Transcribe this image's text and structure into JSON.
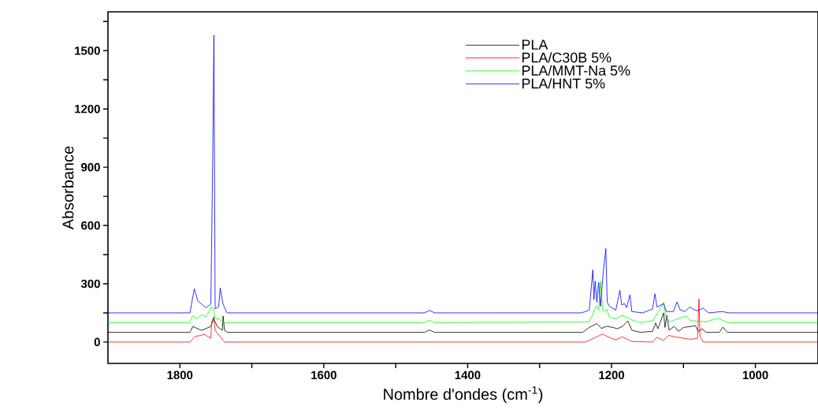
{
  "chart_data": {
    "type": "line",
    "xlabel": "Nombre d'ondes (cm$^{-1}$)",
    "ylabel": "Absorbance",
    "xlim": [
      1900,
      913
    ],
    "ylim": [
      -110,
      1700
    ],
    "xticks": [
      1800,
      {
        "value": 1700,
        "label": null
      },
      1600,
      {
        "value": 1500,
        "label": null
      },
      1400,
      {
        "value": 1300,
        "label": null
      },
      1200,
      {
        "value": 1100,
        "label": null
      },
      1000
    ],
    "yticks": [
      0,
      {
        "value": 150,
        "label": null
      },
      300,
      {
        "value": 450,
        "label": null
      },
      600,
      {
        "value": 750,
        "label": null
      },
      900,
      {
        "value": 1050,
        "label": null
      },
      1200,
      {
        "value": 1350,
        "label": null
      },
      1500,
      {
        "value": 1650,
        "label": null
      }
    ],
    "legend": "top right",
    "series": [
      {
        "name": "PLA",
        "color": "#000000",
        "x": [
          1900,
          1786,
          1782,
          1770,
          1757,
          1756,
          1753,
          1748,
          1741,
          1740,
          1738,
          1734,
          1460,
          1453,
          1446,
          1240,
          1231,
          1220.4,
          1214.2,
          1206.8,
          1197.6,
          1192,
          1184.7,
          1177.3,
          1171.8,
          1160,
          1143,
          1138.6,
          1135.6,
          1127.5,
          1125.7,
          1123.1,
          1120.1,
          1112.8,
          1107,
          1099.9,
          1083.3,
          1079.6,
          1074,
          1068.5,
          1050,
          1045.3,
          1039,
          913
        ],
        "values": [
          50,
          50,
          80,
          60,
          80,
          null,
          120,
          80,
          60,
          134,
          60,
          50,
          50,
          62,
          50,
          50,
          75,
          95,
          70,
          81,
          75,
          68,
          81,
          109,
          61,
          50,
          55,
          98,
          68,
          150,
          75,
          136,
          61,
          81,
          55,
          75,
          84,
          55,
          68,
          50,
          50,
          77,
          50,
          50
        ]
      },
      {
        "name": "PLA/C30B 5%",
        "color": "#ff0000",
        "x": [
          1900,
          1786,
          1779,
          1766,
          1757,
          1756,
          1753,
          1751,
          1747,
          1743,
          1738,
          1236,
          1212.3,
          1205,
          1194,
          1185.4,
          1171.8,
          1143,
          1136.7,
          1128,
          1120.1,
          1112.8,
          1090,
          1080.3,
          1078.5,
          1077,
          1072.2,
          913
        ],
        "values": [
          0,
          0,
          28,
          39,
          20,
          102,
          130,
          60,
          40,
          23,
          0,
          0,
          41,
          27,
          11,
          27,
          3,
          0,
          25,
          8,
          34,
          27,
          14,
          20,
          221,
          27,
          0,
          0
        ]
      },
      {
        "name": "PLA/MMT-Na 5%",
        "color": "#00ff00",
        "x": [
          1900,
          1787,
          1782,
          1776,
          1770,
          1764,
          1759,
          1757,
          1754,
          1751,
          1746,
          1738,
          1460,
          1453,
          1446,
          1231,
          1227,
          1221.5,
          1217.9,
          1215.3,
          1212.3,
          1209.4,
          1206.8,
          1203,
          1194,
          1185.8,
          1179,
          1171.8,
          1160.7,
          1142.3,
          1127.5,
          1124.6,
          1120,
          1105.4,
          1096.2,
          1090.6,
          1068.5,
          1052,
          1039,
          913
        ],
        "values": [
          100,
          100,
          134,
          120,
          140,
          130,
          160,
          183,
          175,
          120,
          120,
          100,
          100,
          112,
          100,
          104,
          134,
          184,
          164,
          314,
          164,
          157,
          170,
          127,
          120,
          137,
          127,
          114,
          100,
          110,
          202,
          134,
          104,
          123,
          134,
          110,
          104,
          123,
          100,
          100
        ]
      },
      {
        "name": "PLA/HNT 5%",
        "color": "#0000ff",
        "x": [
          1900,
          1786,
          1780,
          1775,
          1770,
          1764,
          1757,
          1754.4,
          1752.7,
          1751,
          1746,
          1744,
          1740,
          1734.5,
          1460,
          1453,
          1446,
          1242,
          1231,
          1226,
          1224.5,
          1222.7,
          1220.4,
          1217.9,
          1215.3,
          1211.6,
          1207.9,
          1206,
          1203,
          1194,
          1188.4,
          1185.8,
          1182,
          1179.1,
          1174.3,
          1171.8,
          1157,
          1143,
          1139.7,
          1136.7,
          1127.5,
          1123.8,
          1114,
          1109,
          1104.6,
          1098,
          1091.4,
          1087,
          1080.3,
          1073,
          1065,
          1046,
          1037,
          913
        ],
        "values": [
          150,
          150,
          274,
          211,
          196,
          176,
          196,
          937,
          1580,
          170,
          183,
          278,
          196,
          150,
          150,
          163,
          150,
          150,
          164,
          371,
          218,
          314,
          205,
          307,
          184,
          355,
          481,
          205,
          184,
          164,
          266,
          191,
          198,
          177,
          243,
          157,
          150,
          170,
          248,
          180,
          198,
          157,
          157,
          207,
          166,
          157,
          180,
          170,
          160,
          175,
          150,
          157,
          150,
          150
        ]
      }
    ]
  }
}
